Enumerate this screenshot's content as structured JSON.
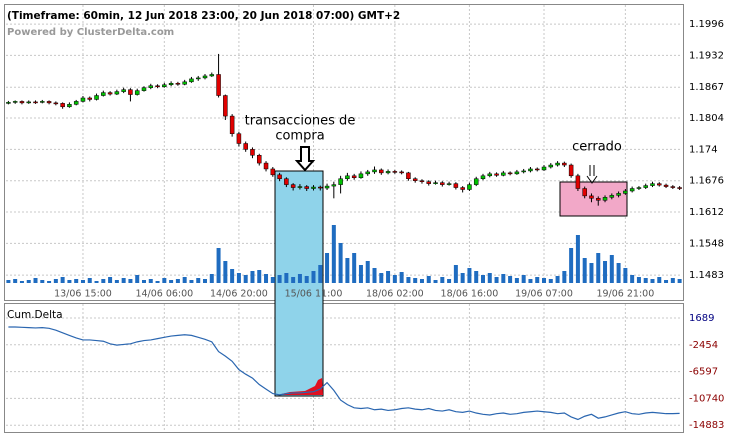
{
  "chart_data": [
    {
      "type": "candlestick",
      "title": "(Timeframe: 60min, 12 Jun 2018 23:00, 20 Jun 2018 07:00) GMT+2",
      "subtitle": "Powered by ClusterDelta.com",
      "categories": [
        null,
        null,
        null,
        null,
        null,
        null,
        null,
        null,
        null,
        null,
        null,
        "13/06 15:00",
        null,
        null,
        null,
        null,
        null,
        null,
        null,
        null,
        null,
        null,
        null,
        "14/06 06:00",
        null,
        null,
        null,
        null,
        null,
        null,
        null,
        null,
        null,
        null,
        "14/06 20:00",
        null,
        null,
        null,
        null,
        null,
        null,
        null,
        null,
        null,
        null,
        "15/06 11:00",
        null,
        null,
        null,
        null,
        null,
        null,
        null,
        null,
        null,
        null,
        null,
        "18/06 02:00",
        null,
        null,
        null,
        null,
        null,
        null,
        null,
        null,
        null,
        null,
        "18/06 16:00",
        null,
        null,
        null,
        null,
        null,
        null,
        null,
        null,
        null,
        null,
        "19/06 07:00",
        null,
        null,
        null,
        null,
        null,
        null,
        null,
        null,
        null,
        null,
        null,
        "19/06 21:00",
        null,
        null,
        null,
        null,
        null,
        null,
        null,
        null
      ],
      "ohlc": [
        [
          1.1835,
          1.1839,
          1.1832,
          1.1836
        ],
        [
          1.1836,
          1.184,
          1.1833,
          1.1838
        ],
        [
          1.1838,
          1.184,
          1.1832,
          1.1835
        ],
        [
          1.1835,
          1.184,
          1.1833,
          1.1837
        ],
        [
          1.1837,
          1.184,
          1.1833,
          1.1836
        ],
        [
          1.1836,
          1.1841,
          1.1834,
          1.1838
        ],
        [
          1.1838,
          1.184,
          1.1832,
          1.1835
        ],
        [
          1.1835,
          1.1838,
          1.183,
          1.1834
        ],
        [
          1.1834,
          1.1836,
          1.1823,
          1.1827
        ],
        [
          1.1827,
          1.1836,
          1.1825,
          1.1832
        ],
        [
          1.1832,
          1.1841,
          1.183,
          1.1838
        ],
        [
          1.1838,
          1.1849,
          1.1836,
          1.1845
        ],
        [
          1.1845,
          1.1848,
          1.1838,
          1.1842
        ],
        [
          1.1842,
          1.1854,
          1.184,
          1.185
        ],
        [
          1.185,
          1.186,
          1.1848,
          1.1856
        ],
        [
          1.1856,
          1.1859,
          1.185,
          1.1853
        ],
        [
          1.1853,
          1.1862,
          1.1851,
          1.1858
        ],
        [
          1.1858,
          1.1866,
          1.1855,
          1.1862
        ],
        [
          1.1862,
          1.1865,
          1.1838,
          1.1852
        ],
        [
          1.1852,
          1.1864,
          1.185,
          1.186
        ],
        [
          1.186,
          1.1869,
          1.1858,
          1.1866
        ],
        [
          1.1866,
          1.1874,
          1.1863,
          1.187
        ],
        [
          1.187,
          1.1873,
          1.1865,
          1.1868
        ],
        [
          1.1868,
          1.1876,
          1.1866,
          1.1872
        ],
        [
          1.1872,
          1.1879,
          1.1869,
          1.1875
        ],
        [
          1.1875,
          1.1878,
          1.187,
          1.1873
        ],
        [
          1.1873,
          1.1882,
          1.1871,
          1.1878
        ],
        [
          1.1878,
          1.1888,
          1.1876,
          1.1884
        ],
        [
          1.1884,
          1.189,
          1.188,
          1.1886
        ],
        [
          1.1886,
          1.1894,
          1.1883,
          1.189
        ],
        [
          1.189,
          1.1897,
          1.1888,
          1.1893
        ],
        [
          1.1893,
          1.1935,
          1.1846,
          1.185
        ],
        [
          1.185,
          1.1852,
          1.18,
          1.1808
        ],
        [
          1.1808,
          1.1812,
          1.1766,
          1.1772
        ],
        [
          1.1772,
          1.1776,
          1.1746,
          1.1752
        ],
        [
          1.1752,
          1.1756,
          1.1735,
          1.174
        ],
        [
          1.174,
          1.1744,
          1.1722,
          1.1728
        ],
        [
          1.1728,
          1.1731,
          1.1707,
          1.1712
        ],
        [
          1.1712,
          1.1716,
          1.1695,
          1.17
        ],
        [
          1.17,
          1.1704,
          1.1684,
          1.1688
        ],
        [
          1.1688,
          1.1692,
          1.1675,
          1.168
        ],
        [
          1.168,
          1.1683,
          1.1663,
          1.1668
        ],
        [
          1.1668,
          1.1671,
          1.1656,
          1.1662
        ],
        [
          1.1662,
          1.1669,
          1.1658,
          1.1664
        ],
        [
          1.1664,
          1.1667,
          1.1655,
          1.166
        ],
        [
          1.166,
          1.1667,
          1.1656,
          1.1663
        ],
        [
          1.1663,
          1.1666,
          1.1656,
          1.1661
        ],
        [
          1.1661,
          1.167,
          1.1657,
          1.1665
        ],
        [
          1.1665,
          1.1674,
          1.164,
          1.1668
        ],
        [
          1.1668,
          1.1686,
          1.165,
          1.168
        ],
        [
          1.168,
          1.1692,
          1.1676,
          1.1686
        ],
        [
          1.1686,
          1.169,
          1.1678,
          1.1682
        ],
        [
          1.1682,
          1.1695,
          1.168,
          1.169
        ],
        [
          1.169,
          1.1698,
          1.1686,
          1.1694
        ],
        [
          1.1694,
          1.1705,
          1.169,
          1.1698
        ],
        [
          1.1698,
          1.1701,
          1.1688,
          1.1692
        ],
        [
          1.1692,
          1.1699,
          1.1689,
          1.1695
        ],
        [
          1.1695,
          1.1698,
          1.169,
          1.1694
        ],
        [
          1.1694,
          1.1697,
          1.1689,
          1.1692
        ],
        [
          1.1692,
          1.1694,
          1.1676,
          1.168
        ],
        [
          1.168,
          1.1683,
          1.1672,
          1.1676
        ],
        [
          1.1676,
          1.1679,
          1.167,
          1.1674
        ],
        [
          1.1674,
          1.1677,
          1.1666,
          1.167
        ],
        [
          1.167,
          1.1676,
          1.1668,
          1.1672
        ],
        [
          1.1672,
          1.1675,
          1.1664,
          1.1668
        ],
        [
          1.1668,
          1.1674,
          1.1666,
          1.167
        ],
        [
          1.167,
          1.1673,
          1.1658,
          1.1662
        ],
        [
          1.1662,
          1.1665,
          1.1652,
          1.1658
        ],
        [
          1.1658,
          1.1672,
          1.1655,
          1.1668
        ],
        [
          1.1668,
          1.1684,
          1.1665,
          1.168
        ],
        [
          1.168,
          1.169,
          1.1677,
          1.1686
        ],
        [
          1.1686,
          1.1694,
          1.1683,
          1.169
        ],
        [
          1.169,
          1.1693,
          1.1684,
          1.1687
        ],
        [
          1.1687,
          1.1696,
          1.1685,
          1.1692
        ],
        [
          1.1692,
          1.1695,
          1.1687,
          1.169
        ],
        [
          1.169,
          1.1698,
          1.1688,
          1.1694
        ],
        [
          1.1694,
          1.17,
          1.1691,
          1.1696
        ],
        [
          1.1696,
          1.1704,
          1.1693,
          1.17
        ],
        [
          1.17,
          1.1703,
          1.1695,
          1.1698
        ],
        [
          1.1698,
          1.1708,
          1.1696,
          1.1704
        ],
        [
          1.1704,
          1.1712,
          1.1701,
          1.1708
        ],
        [
          1.1708,
          1.1716,
          1.1705,
          1.1712
        ],
        [
          1.1712,
          1.1715,
          1.1704,
          1.1708
        ],
        [
          1.1708,
          1.1711,
          1.1682,
          1.1686
        ],
        [
          1.1686,
          1.169,
          1.1655,
          1.166
        ],
        [
          1.166,
          1.1664,
          1.164,
          1.1645
        ],
        [
          1.1645,
          1.165,
          1.1632,
          1.164
        ],
        [
          1.164,
          1.1644,
          1.1625,
          1.1636
        ],
        [
          1.1636,
          1.1646,
          1.1632,
          1.1642
        ],
        [
          1.1642,
          1.165,
          1.1638,
          1.1646
        ],
        [
          1.1646,
          1.1654,
          1.1642,
          1.165
        ],
        [
          1.165,
          1.1659,
          1.1647,
          1.1655
        ],
        [
          1.1655,
          1.1664,
          1.1652,
          1.166
        ],
        [
          1.166,
          1.1665,
          1.1657,
          1.1662
        ],
        [
          1.1662,
          1.167,
          1.1659,
          1.1666
        ],
        [
          1.1666,
          1.1674,
          1.1663,
          1.167
        ],
        [
          1.167,
          1.1673,
          1.1664,
          1.1667
        ],
        [
          1.1667,
          1.167,
          1.1661,
          1.1664
        ],
        [
          1.1664,
          1.1667,
          1.1659,
          1.1662
        ],
        [
          1.1662,
          1.1665,
          1.1657,
          1.166
        ]
      ],
      "volume": [
        3,
        4,
        2,
        3,
        5,
        3,
        2,
        4,
        6,
        3,
        4,
        3,
        5,
        2,
        4,
        6,
        3,
        5,
        4,
        8,
        3,
        4,
        2,
        5,
        3,
        4,
        6,
        3,
        5,
        4,
        9,
        35,
        22,
        14,
        10,
        8,
        12,
        13,
        9,
        6,
        8,
        10,
        6,
        9,
        7,
        12,
        18,
        30,
        58,
        40,
        25,
        30,
        18,
        22,
        15,
        10,
        12,
        8,
        11,
        6,
        5,
        4,
        7,
        3,
        6,
        4,
        18,
        10,
        15,
        12,
        8,
        10,
        6,
        9,
        7,
        5,
        8,
        4,
        6,
        5,
        4,
        7,
        12,
        35,
        48,
        25,
        20,
        30,
        22,
        28,
        20,
        15,
        8,
        6,
        5,
        4,
        6,
        3,
        5,
        4
      ],
      "up_color": "#00c000",
      "down_color": "#e00000",
      "volume_color": "#1f6cc0",
      "ylim": [
        1.1467,
        1.2037
      ],
      "yticks": [
        1.1996,
        1.1932,
        1.1867,
        1.1804,
        1.174,
        1.1676,
        1.1612,
        1.1548,
        1.1483
      ],
      "grid": true,
      "annotations": [
        "transacciones de",
        "compra",
        "cerrado"
      ]
    },
    {
      "type": "line",
      "title": "Cum.Delta",
      "values": [
        300,
        300,
        250,
        200,
        150,
        200,
        100,
        -200,
        -600,
        -1000,
        -1400,
        -1700,
        -1700,
        -1800,
        -1900,
        -2300,
        -2500,
        -2400,
        -2300,
        -2000,
        -1800,
        -1700,
        -1500,
        -1300,
        -1100,
        -1000,
        -900,
        -1000,
        -1300,
        -1600,
        -2000,
        -3500,
        -4200,
        -5000,
        -6300,
        -7000,
        -7600,
        -8600,
        -9300,
        -10000,
        -10200,
        -10000,
        -9900,
        -9900,
        -9800,
        -9700,
        -9300,
        -8300,
        -9500,
        -11000,
        -11700,
        -12200,
        -12300,
        -12200,
        -12500,
        -12400,
        -12600,
        -12500,
        -12300,
        -12200,
        -12400,
        -12500,
        -12300,
        -12600,
        -12700,
        -12500,
        -12800,
        -12900,
        -12700,
        -13000,
        -13200,
        -13300,
        -13100,
        -13000,
        -13200,
        -13100,
        -12900,
        -12800,
        -12700,
        -12800,
        -12900,
        -13100,
        -13000,
        -13600,
        -14000,
        -13500,
        -13200,
        -13800,
        -13600,
        -13300,
        -13000,
        -12800,
        -13100,
        -13200,
        -13000,
        -12900,
        -13000,
        -13100,
        -13100,
        -13050
      ],
      "color": "#2a66b0",
      "ylim": [
        -15935,
        4008
      ],
      "yticks": [
        1689,
        -2454,
        -6597,
        -10740,
        -14883
      ],
      "ytick_colors": [
        "#000080",
        "#8b0000",
        "#8b0000",
        "#8b0000",
        "#8b0000"
      ],
      "grid": true
    }
  ]
}
